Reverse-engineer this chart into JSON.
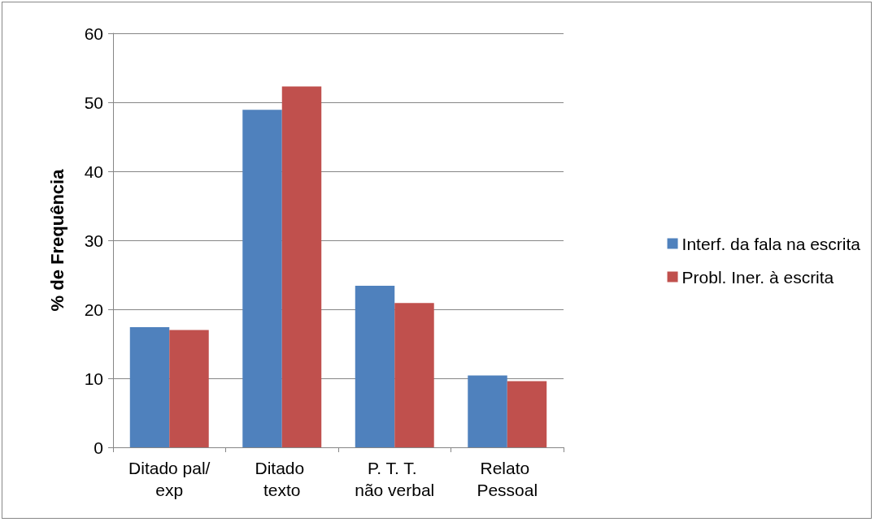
{
  "chart_data": {
    "type": "bar",
    "ylabel": "% de Frequência",
    "categories": [
      "Ditado pal/exp",
      "Ditado texto",
      "P. T. T. não verbal",
      "Relato Pessoal"
    ],
    "series": [
      {
        "name": "Interf. da fala na escrita",
        "color": "#4f81bd",
        "values": [
          17.4,
          48.9,
          23.4,
          10.4
        ]
      },
      {
        "name": "Probl. Iner. à escrita",
        "color": "#c0504d",
        "values": [
          17.0,
          52.3,
          20.9,
          9.6
        ]
      }
    ],
    "ylim": [
      0,
      60
    ],
    "yticks": [
      0,
      10,
      20,
      30,
      40,
      50,
      60
    ],
    "grid": "y",
    "legend": "right"
  }
}
